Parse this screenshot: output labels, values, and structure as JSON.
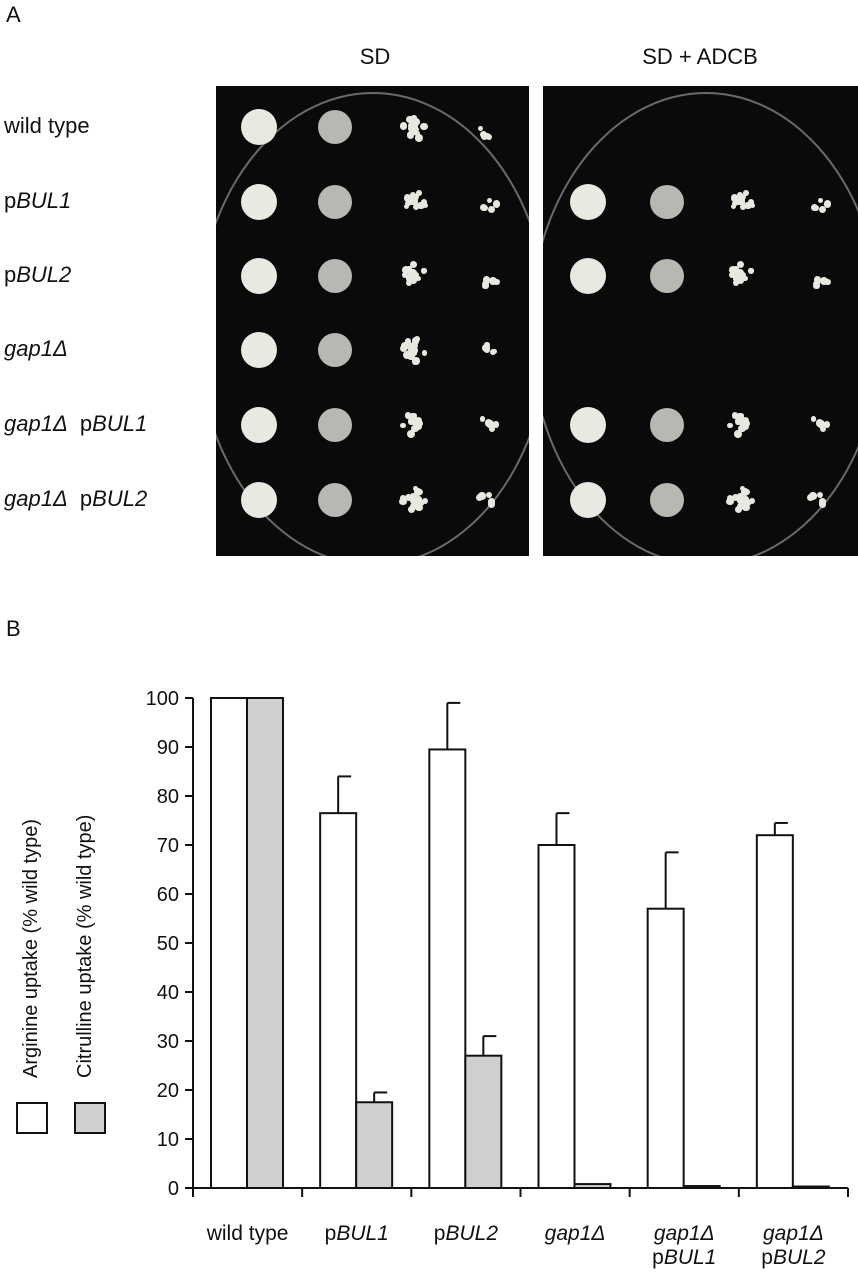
{
  "panel_a": {
    "letter": "A",
    "col_headers": [
      "SD",
      "SD + ADCB"
    ],
    "strains": [
      {
        "prefix": "",
        "italic": "",
        "plain": "wild type"
      },
      {
        "prefix": "p",
        "italic": "BUL1",
        "plain": ""
      },
      {
        "prefix": "p",
        "italic": "BUL2",
        "plain": ""
      },
      {
        "prefix": "",
        "italic": "gap1Δ",
        "plain": ""
      },
      {
        "prefix": "",
        "italic": "gap1Δ",
        "plain": " pBUL1"
      },
      {
        "prefix": "",
        "italic": "gap1Δ",
        "plain": " pBUL2"
      }
    ],
    "growth_on_adcb": [
      false,
      true,
      true,
      false,
      true,
      true
    ]
  },
  "panel_b": {
    "letter": "B",
    "legend": {
      "arginine": "Arginine uptake (% wild type)",
      "citrulline": "Citrulline uptake (% wild type)"
    },
    "x_labels": [
      {
        "line1_pre": "wild type",
        "line1_it": "",
        "line2_pre": "",
        "line2_it": ""
      },
      {
        "line1_pre": "p",
        "line1_it": "BUL1",
        "line2_pre": "",
        "line2_it": ""
      },
      {
        "line1_pre": "p",
        "line1_it": "BUL2",
        "line2_pre": "",
        "line2_it": ""
      },
      {
        "line1_pre": "",
        "line1_it": "gap1Δ",
        "line2_pre": "",
        "line2_it": ""
      },
      {
        "line1_pre": "",
        "line1_it": "gap1Δ",
        "line2_pre": "p",
        "line2_it": "BUL1"
      },
      {
        "line1_pre": "",
        "line1_it": "gap1Δ",
        "line2_pre": "p",
        "line2_it": "BUL2"
      }
    ]
  },
  "chart_data": {
    "type": "bar",
    "categories": [
      "wild type",
      "pBUL1",
      "pBUL2",
      "gap1Δ",
      "gap1Δ pBUL1",
      "gap1Δ pBUL2"
    ],
    "series": [
      {
        "name": "Arginine uptake (% wild type)",
        "color": "#ffffff",
        "values": [
          100,
          76.5,
          89.5,
          70,
          57,
          72
        ],
        "errors": [
          0,
          7.5,
          9.5,
          6.5,
          11.5,
          2.5
        ]
      },
      {
        "name": "Citrulline uptake (% wild type)",
        "color": "#cfcfcf",
        "values": [
          100,
          17.5,
          27,
          0.8,
          0.4,
          0.3
        ],
        "errors": [
          0,
          2,
          4,
          0,
          0,
          0
        ]
      }
    ],
    "yticks": [
      0,
      10,
      20,
      30,
      40,
      50,
      60,
      70,
      80,
      90,
      100
    ],
    "ylim": [
      0,
      100
    ],
    "grid": false,
    "legend_position": "left"
  }
}
